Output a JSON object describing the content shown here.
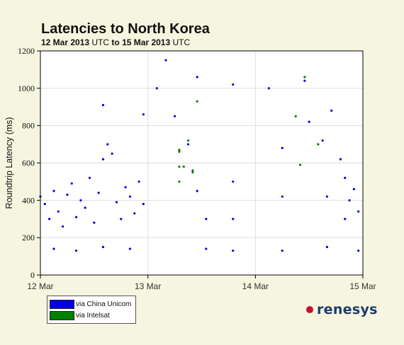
{
  "title": "Latencies to North Korea",
  "subtitle": {
    "start": "12 Mar 2013",
    "start_tz": "UTC",
    "to": "to",
    "end": "15 Mar 2013",
    "end_tz": "UTC"
  },
  "logo": {
    "text": "renesys",
    "dot_color": "#c8102e",
    "text_color": "#1c3c6c"
  },
  "chart_data": {
    "type": "scatter",
    "ylabel": "Roundtrip Latency (ms)",
    "xlabel": "",
    "ylim": [
      0,
      1200
    ],
    "yticks": [
      0,
      200,
      400,
      600,
      800,
      1000,
      1200
    ],
    "xticks": [
      "12 Mar",
      "13 Mar",
      "14 Mar",
      "15 Mar"
    ],
    "grid": true,
    "legend_position": "bottom-left",
    "series": [
      {
        "name": "via China Unicom",
        "color": "#0000e6",
        "points": [
          [
            "12 Mar 00:00",
            420
          ],
          [
            "12 Mar 01:00",
            380
          ],
          [
            "12 Mar 02:00",
            300
          ],
          [
            "12 Mar 03:00",
            450
          ],
          [
            "12 Mar 04:00",
            340
          ],
          [
            "12 Mar 05:00",
            260
          ],
          [
            "12 Mar 06:00",
            430
          ],
          [
            "12 Mar 07:00",
            490
          ],
          [
            "12 Mar 08:00",
            310
          ],
          [
            "12 Mar 09:00",
            400
          ],
          [
            "12 Mar 10:00",
            360
          ],
          [
            "12 Mar 11:00",
            520
          ],
          [
            "12 Mar 12:00",
            280
          ],
          [
            "12 Mar 13:00",
            440
          ],
          [
            "12 Mar 14:00",
            620
          ],
          [
            "12 Mar 15:00",
            700
          ],
          [
            "12 Mar 16:00",
            650
          ],
          [
            "12 Mar 17:00",
            390
          ],
          [
            "12 Mar 18:00",
            300
          ],
          [
            "12 Mar 19:00",
            470
          ],
          [
            "12 Mar 20:00",
            420
          ],
          [
            "12 Mar 21:00",
            330
          ],
          [
            "12 Mar 22:00",
            500
          ],
          [
            "12 Mar 23:00",
            380
          ],
          [
            "12 Mar 03:00",
            140
          ],
          [
            "12 Mar 08:00",
            130
          ],
          [
            "12 Mar 14:00",
            150
          ],
          [
            "12 Mar 20:00",
            140
          ],
          [
            "12 Mar 14:00",
            910
          ],
          [
            "12 Mar 23:00",
            860
          ],
          [
            "13 Mar 02:00",
            1000
          ],
          [
            "13 Mar 04:00",
            1150
          ],
          [
            "13 Mar 06:00",
            850
          ],
          [
            "13 Mar 09:00",
            700
          ],
          [
            "13 Mar 11:00",
            1060
          ],
          [
            "13 Mar 11:00",
            450
          ],
          [
            "13 Mar 13:00",
            300
          ],
          [
            "13 Mar 13:00",
            140
          ],
          [
            "13 Mar 19:00",
            1020
          ],
          [
            "13 Mar 19:00",
            500
          ],
          [
            "13 Mar 19:00",
            300
          ],
          [
            "13 Mar 19:00",
            130
          ],
          [
            "14 Mar 03:00",
            1000
          ],
          [
            "14 Mar 06:00",
            420
          ],
          [
            "14 Mar 06:00",
            130
          ],
          [
            "14 Mar 06:00",
            680
          ],
          [
            "14 Mar 11:00",
            1040
          ],
          [
            "14 Mar 12:00",
            820
          ],
          [
            "14 Mar 15:00",
            720
          ],
          [
            "14 Mar 16:00",
            420
          ],
          [
            "14 Mar 16:00",
            150
          ],
          [
            "14 Mar 17:00",
            880
          ],
          [
            "14 Mar 19:00",
            620
          ],
          [
            "14 Mar 20:00",
            520
          ],
          [
            "14 Mar 20:00",
            300
          ],
          [
            "14 Mar 21:00",
            400
          ],
          [
            "14 Mar 22:00",
            460
          ],
          [
            "14 Mar 23:00",
            340
          ],
          [
            "14 Mar 23:00",
            130
          ]
        ]
      },
      {
        "name": "via Intelsat",
        "color": "#008000",
        "points": [
          [
            "13 Mar 07:00",
            660
          ],
          [
            "13 Mar 07:00",
            670
          ],
          [
            "13 Mar 07:00",
            580
          ],
          [
            "13 Mar 07:00",
            500
          ],
          [
            "13 Mar 08:00",
            580
          ],
          [
            "13 Mar 09:00",
            720
          ],
          [
            "13 Mar 10:00",
            560
          ],
          [
            "13 Mar 10:00",
            550
          ],
          [
            "13 Mar 11:00",
            930
          ],
          [
            "14 Mar 09:00",
            850
          ],
          [
            "14 Mar 10:00",
            590
          ],
          [
            "14 Mar 11:00",
            1060
          ],
          [
            "14 Mar 14:00",
            700
          ]
        ]
      }
    ]
  },
  "legend": {
    "items": [
      {
        "label": "via China Unicom",
        "color": "#0000e6"
      },
      {
        "label": "via Intelsat",
        "color": "#008000"
      }
    ]
  }
}
